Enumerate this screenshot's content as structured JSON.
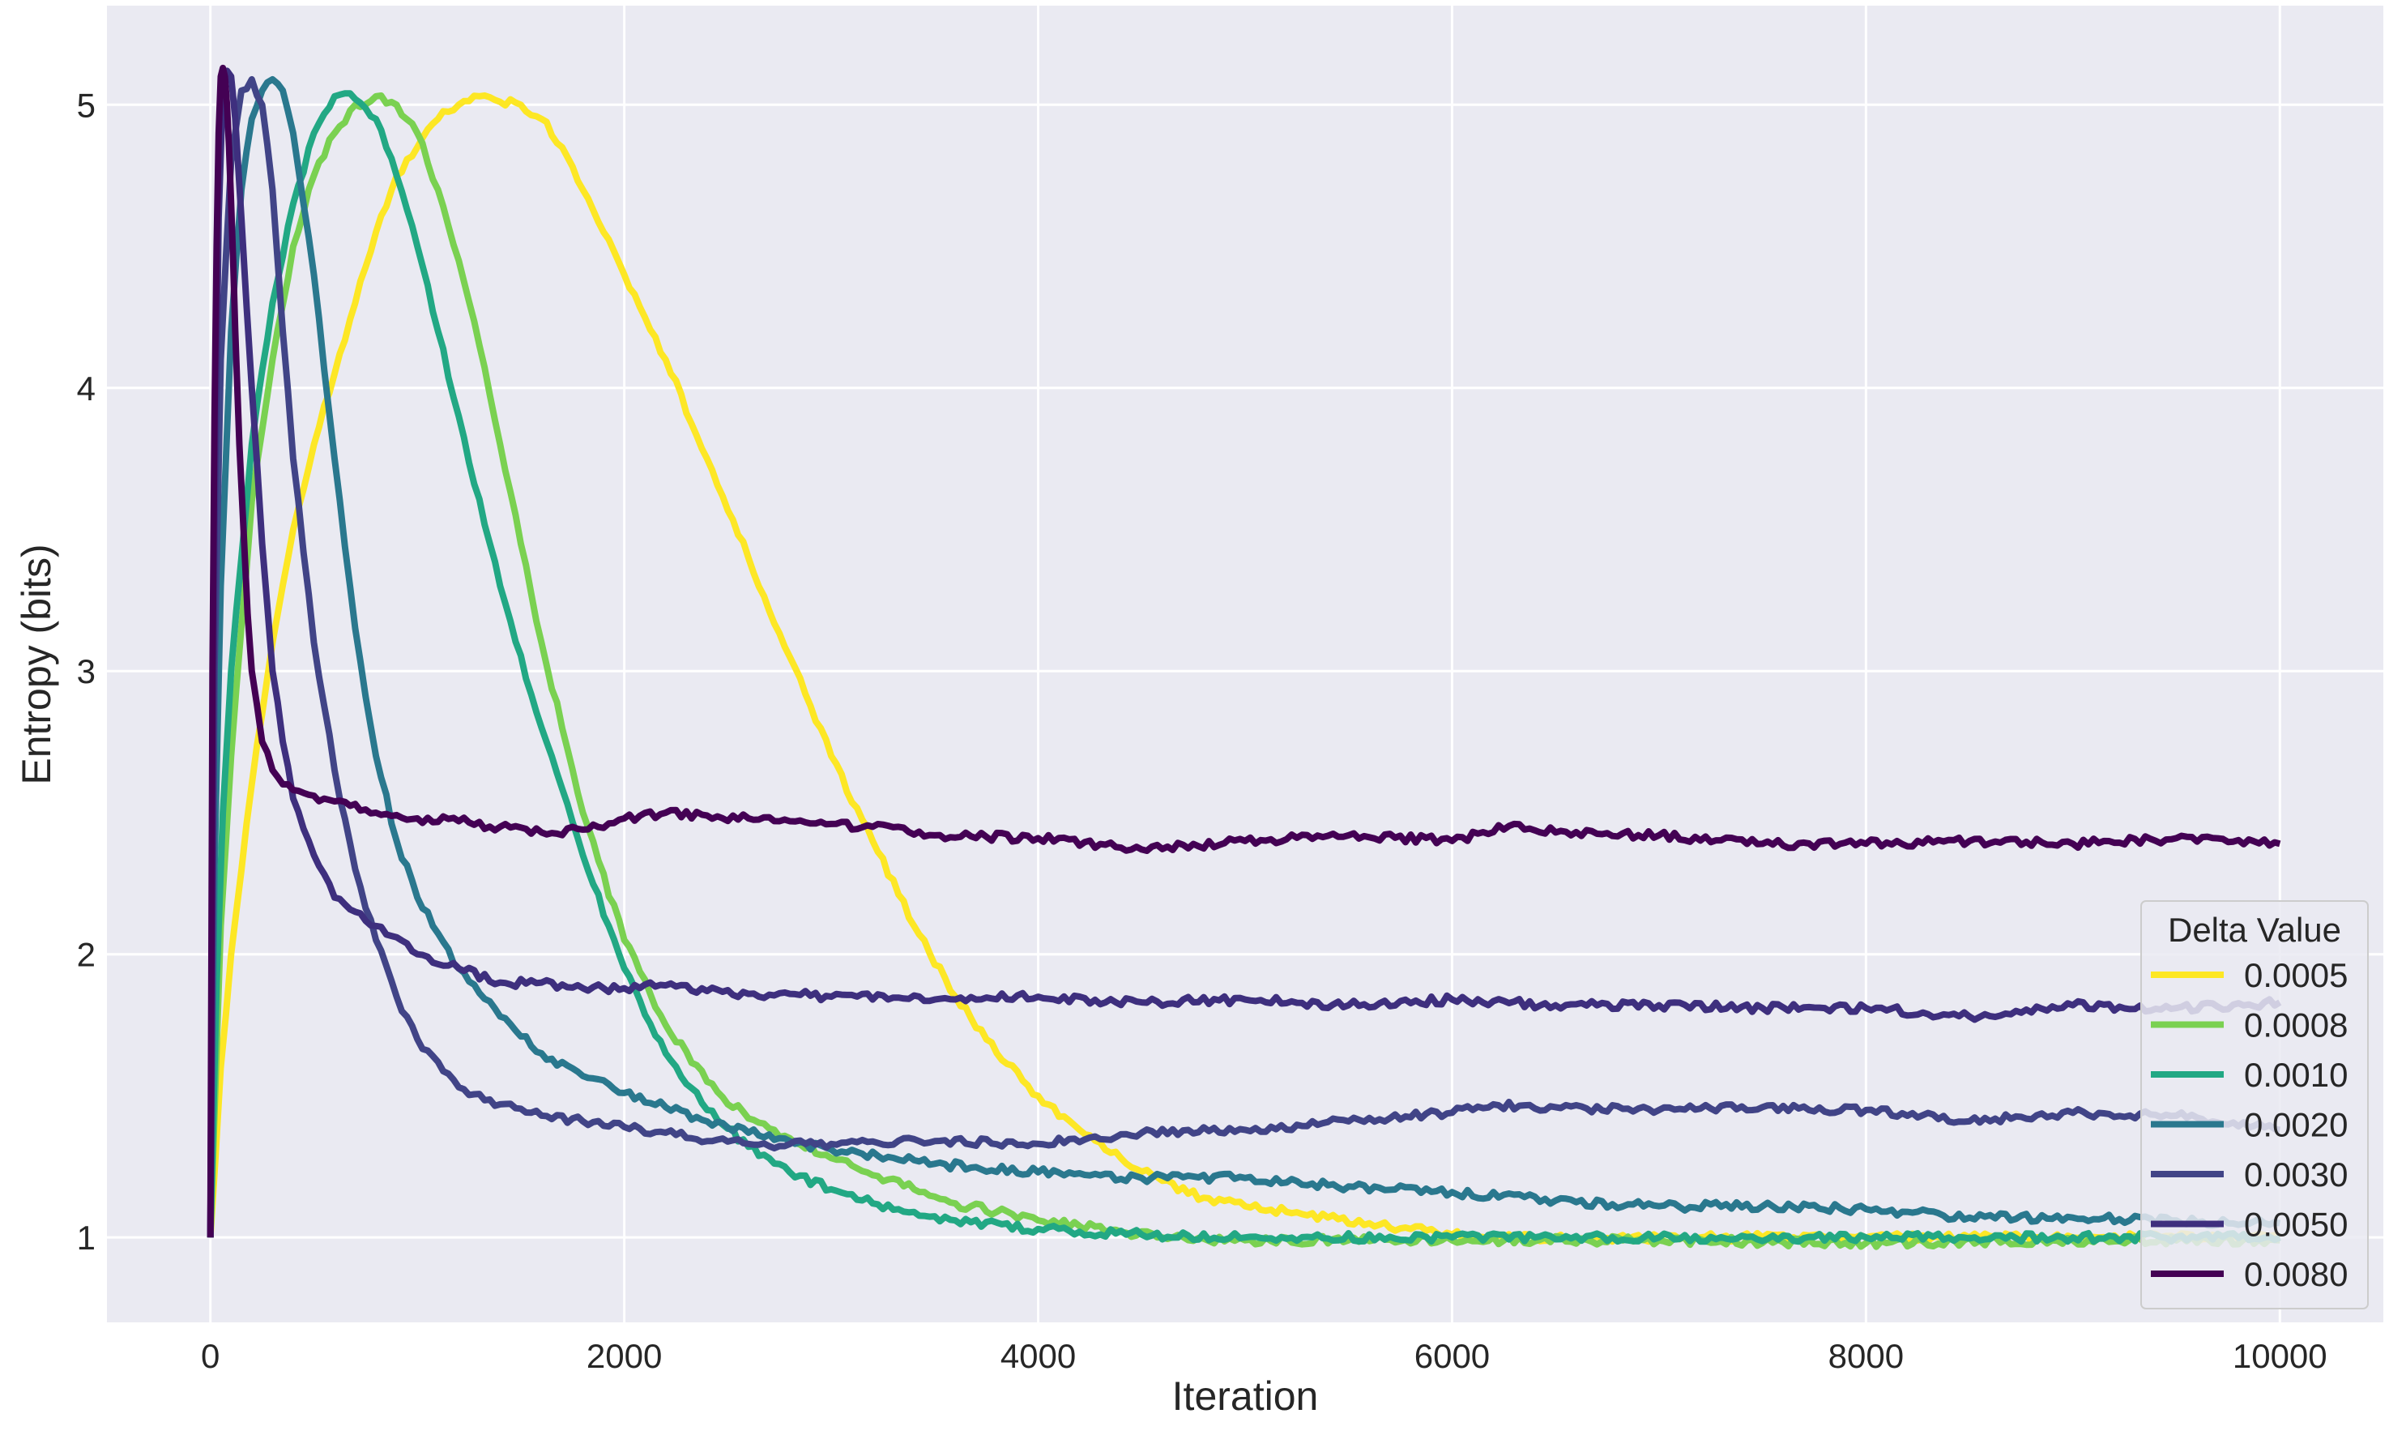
{
  "chart_data": {
    "type": "line",
    "xlabel": "Iteration",
    "ylabel": "Entropy (bits)",
    "xlim": [
      -500,
      10500
    ],
    "ylim": [
      0.7,
      5.35
    ],
    "xticks": [
      0,
      2000,
      4000,
      6000,
      8000,
      10000
    ],
    "xtick_labels": [
      "0",
      "2000",
      "4000",
      "6000",
      "8000",
      "10000"
    ],
    "yticks": [
      1,
      2,
      3,
      4,
      5
    ],
    "ytick_labels": [
      "1",
      "2",
      "3",
      "4",
      "5"
    ],
    "grid": true,
    "legend": {
      "title": "Delta Value",
      "placement": "lower-right"
    },
    "series": [
      {
        "name": "0.0005",
        "color": "#fde725",
        "x": [
          0,
          50,
          100,
          200,
          300,
          400,
          500,
          600,
          700,
          800,
          900,
          1000,
          1100,
          1200,
          1300,
          1400,
          1500,
          1600,
          1700,
          1800,
          1900,
          2000,
          2200,
          2400,
          2600,
          2800,
          3000,
          3200,
          3400,
          3600,
          3800,
          4000,
          4200,
          4400,
          4600,
          4800,
          5000,
          5200,
          5400,
          5600,
          5800,
          6000,
          6500,
          7000,
          7500,
          8000,
          8500,
          9000,
          9500,
          10000
        ],
        "y": [
          1.0,
          1.6,
          2.0,
          2.6,
          3.1,
          3.5,
          3.8,
          4.05,
          4.3,
          4.55,
          4.75,
          4.85,
          4.95,
          5.0,
          5.03,
          5.01,
          5.0,
          4.95,
          4.85,
          4.7,
          4.55,
          4.4,
          4.1,
          3.75,
          3.4,
          3.05,
          2.7,
          2.4,
          2.1,
          1.85,
          1.65,
          1.5,
          1.38,
          1.28,
          1.2,
          1.14,
          1.11,
          1.09,
          1.07,
          1.05,
          1.03,
          1.01,
          1.0,
          1.0,
          1.0,
          1.0,
          1.0,
          1.0,
          1.0,
          1.0
        ]
      },
      {
        "name": "0.0008",
        "color": "#7ad151",
        "x": [
          0,
          50,
          100,
          200,
          300,
          400,
          500,
          600,
          700,
          800,
          900,
          1000,
          1100,
          1200,
          1300,
          1400,
          1500,
          1600,
          1800,
          2000,
          2200,
          2400,
          2600,
          2800,
          3000,
          3200,
          3400,
          3600,
          3800,
          4000,
          4200,
          4400,
          4600,
          5000,
          5500,
          6000,
          7000,
          8000,
          9000,
          10000
        ],
        "y": [
          1.0,
          2.1,
          2.7,
          3.6,
          4.1,
          4.5,
          4.75,
          4.9,
          5.0,
          5.03,
          5.0,
          4.9,
          4.7,
          4.45,
          4.15,
          3.8,
          3.45,
          3.1,
          2.5,
          2.05,
          1.75,
          1.55,
          1.42,
          1.35,
          1.28,
          1.22,
          1.17,
          1.12,
          1.09,
          1.06,
          1.04,
          1.02,
          1.0,
          0.99,
          0.99,
          0.99,
          0.99,
          0.98,
          0.99,
          0.99
        ]
      },
      {
        "name": "0.0010",
        "color": "#22a884",
        "x": [
          0,
          30,
          60,
          100,
          150,
          200,
          300,
          400,
          500,
          600,
          650,
          700,
          800,
          900,
          1000,
          1100,
          1200,
          1400,
          1600,
          1800,
          2000,
          2200,
          2400,
          2600,
          2800,
          3000,
          3200,
          3400,
          3600,
          4000,
          4500,
          5000,
          6000,
          7000,
          8000,
          9000,
          10000
        ],
        "y": [
          1.0,
          1.9,
          2.5,
          3.0,
          3.4,
          3.8,
          4.3,
          4.65,
          4.9,
          5.03,
          5.04,
          5.02,
          4.95,
          4.75,
          4.5,
          4.2,
          3.9,
          3.3,
          2.8,
          2.35,
          1.95,
          1.65,
          1.45,
          1.32,
          1.23,
          1.17,
          1.12,
          1.09,
          1.06,
          1.03,
          1.01,
          1.0,
          1.0,
          1.0,
          1.0,
          1.0,
          1.0
        ]
      },
      {
        "name": "0.0020",
        "color": "#2a788e",
        "x": [
          0,
          20,
          50,
          100,
          150,
          200,
          250,
          300,
          350,
          400,
          500,
          600,
          700,
          800,
          900,
          1000,
          1200,
          1400,
          1600,
          1800,
          2000,
          2200,
          2400,
          2600,
          2800,
          3000,
          3500,
          4000,
          4500,
          5000,
          5500,
          6000,
          6500,
          7000,
          7500,
          8000,
          8500,
          9000,
          9500,
          10000
        ],
        "y": [
          1.0,
          2.3,
          3.3,
          4.2,
          4.7,
          4.95,
          5.05,
          5.09,
          5.05,
          4.9,
          4.4,
          3.75,
          3.15,
          2.7,
          2.4,
          2.2,
          1.95,
          1.78,
          1.65,
          1.57,
          1.51,
          1.46,
          1.41,
          1.37,
          1.34,
          1.31,
          1.26,
          1.23,
          1.21,
          1.21,
          1.18,
          1.16,
          1.13,
          1.11,
          1.11,
          1.1,
          1.07,
          1.07,
          1.06,
          1.05
        ]
      },
      {
        "name": "0.0030",
        "color": "#414487",
        "x": [
          0,
          20,
          50,
          100,
          150,
          200,
          250,
          300,
          350,
          400,
          500,
          600,
          700,
          800,
          900,
          1000,
          1100,
          1200,
          1400,
          1600,
          1800,
          2000,
          2200,
          2400,
          2600,
          2800,
          3000,
          3500,
          4000,
          4500,
          5000,
          5500,
          6000,
          6200,
          6500,
          7000,
          7500,
          8000,
          8500,
          9000,
          9500,
          10000
        ],
        "y": [
          1.0,
          3.0,
          4.1,
          4.8,
          5.05,
          5.09,
          5.0,
          4.7,
          4.2,
          3.75,
          3.1,
          2.65,
          2.3,
          2.05,
          1.85,
          1.7,
          1.62,
          1.53,
          1.47,
          1.43,
          1.41,
          1.39,
          1.37,
          1.34,
          1.33,
          1.33,
          1.33,
          1.34,
          1.33,
          1.37,
          1.38,
          1.41,
          1.44,
          1.47,
          1.46,
          1.45,
          1.46,
          1.45,
          1.41,
          1.44,
          1.43,
          1.38
        ]
      },
      {
        "name": "0.0050",
        "color": "#3e2f7e",
        "x": [
          0,
          20,
          40,
          60,
          80,
          100,
          120,
          150,
          200,
          250,
          300,
          350,
          400,
          500,
          600,
          700,
          800,
          900,
          1000,
          1200,
          1400,
          1600,
          1800,
          2000,
          2200,
          2400,
          2600,
          2800,
          3000,
          3500,
          4000,
          4500,
          5000,
          5500,
          6000,
          6500,
          7000,
          7500,
          8000,
          8500,
          9000,
          9500,
          10000
        ],
        "y": [
          1.0,
          3.5,
          4.6,
          5.05,
          5.12,
          5.1,
          4.95,
          4.6,
          4.0,
          3.45,
          3.0,
          2.75,
          2.55,
          2.35,
          2.2,
          2.15,
          2.1,
          2.06,
          2.0,
          1.95,
          1.9,
          1.9,
          1.88,
          1.88,
          1.89,
          1.87,
          1.86,
          1.86,
          1.85,
          1.84,
          1.85,
          1.83,
          1.84,
          1.82,
          1.84,
          1.82,
          1.82,
          1.81,
          1.81,
          1.78,
          1.82,
          1.81,
          1.83
        ]
      },
      {
        "name": "0.0080",
        "color": "#440154",
        "x": [
          0,
          10,
          20,
          30,
          40,
          50,
          60,
          70,
          80,
          90,
          100,
          110,
          120,
          140,
          160,
          180,
          200,
          250,
          300,
          350,
          400,
          500,
          600,
          800,
          1000,
          1200,
          1400,
          1600,
          1800,
          2000,
          2200,
          2400,
          2600,
          2800,
          3000,
          3200,
          3500,
          4000,
          4500,
          5000,
          5500,
          6000,
          6300,
          6500,
          7000,
          7500,
          8000,
          8500,
          9000,
          9500,
          10000
        ],
        "y": [
          1.0,
          3.0,
          3.9,
          4.5,
          4.9,
          5.1,
          5.13,
          5.1,
          5.0,
          4.85,
          4.65,
          4.45,
          4.2,
          3.8,
          3.5,
          3.2,
          3.0,
          2.75,
          2.65,
          2.6,
          2.58,
          2.56,
          2.54,
          2.5,
          2.48,
          2.47,
          2.45,
          2.43,
          2.44,
          2.48,
          2.5,
          2.49,
          2.48,
          2.47,
          2.46,
          2.45,
          2.42,
          2.41,
          2.37,
          2.4,
          2.42,
          2.4,
          2.46,
          2.43,
          2.42,
          2.39,
          2.39,
          2.4,
          2.39,
          2.41,
          2.39
        ]
      }
    ]
  }
}
